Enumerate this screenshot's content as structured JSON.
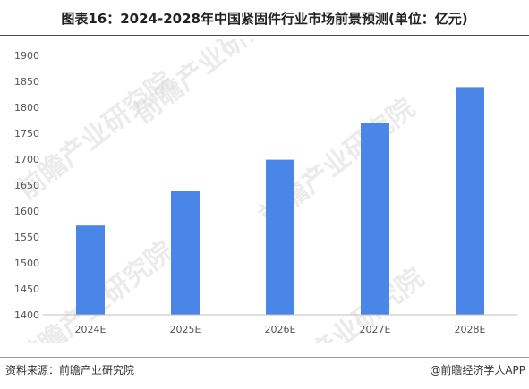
{
  "figure": {
    "title": "图表16：2024-2028年中国紧固件行业市场前景预测(单位：亿元)",
    "source": "资料来源：前瞻产业研究院",
    "credit": "@前瞻经济学人APP",
    "watermark_text": "前瞻产业研究院",
    "bar_color": "#4A86E8"
  },
  "chart_data": {
    "type": "bar",
    "title": "图表16：2024-2028年中国紧固件行业市场前景预测(单位：亿元)",
    "xlabel": "",
    "ylabel": "",
    "categories": [
      "2024E",
      "2025E",
      "2026E",
      "2027E",
      "2028E"
    ],
    "values": [
      1572,
      1638,
      1699,
      1770,
      1839
    ],
    "ylim": [
      1400,
      1900
    ],
    "yticks": [
      1400,
      1450,
      1500,
      1550,
      1600,
      1650,
      1700,
      1750,
      1800,
      1850,
      1900
    ],
    "grid": false,
    "legend": "none"
  }
}
